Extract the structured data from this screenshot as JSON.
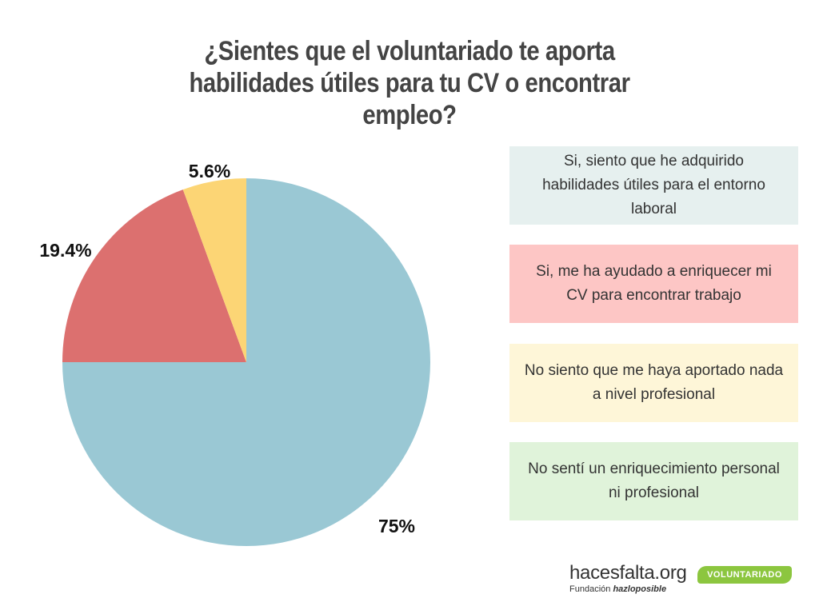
{
  "chart_data": {
    "type": "pie",
    "title": "¿Sientes que el voluntariado te aporta habilidades útiles para tu CV o encontrar empleo?",
    "slices": [
      {
        "label": "Si, siento que he adquirido habilidades útiles para el entorno laboral",
        "value": 75,
        "display": "75%",
        "color": "#9ac8d4"
      },
      {
        "label": "Si, me ha ayudado a enriquecer mi CV para encontrar trabajo",
        "value": 19.4,
        "display": "19.4%",
        "color": "#dc706f"
      },
      {
        "label": "No siento que me haya aportado nada a nivel profesional",
        "value": 5.6,
        "display": "5.6%",
        "color": "#fcd575"
      },
      {
        "label": "No sentí un enriquecimiento personal ni profesional",
        "value": 0,
        "display": "",
        "color": "#e0f3da"
      }
    ]
  },
  "legend": {
    "items": [
      {
        "text": "Si, siento que he adquirido habilidades útiles para el entorno laboral",
        "bg": "#e6f0ef"
      },
      {
        "text": "Si, me ha ayudado a enriquecer mi CV para encontrar trabajo",
        "bg": "#fdc6c5"
      },
      {
        "text": "No siento que me haya aportado nada a nivel profesional",
        "bg": "#fef6d8"
      },
      {
        "text": "No sentí un enriquecimiento personal ni profesional",
        "bg": "#e0f3da"
      }
    ]
  },
  "footer": {
    "brand": "hacesfalta.org",
    "sub_prefix": "Fundación",
    "sub_brand": "hazloposible",
    "pill": "VOLUNTARIADO",
    "pill_color": "#8cc63f"
  }
}
